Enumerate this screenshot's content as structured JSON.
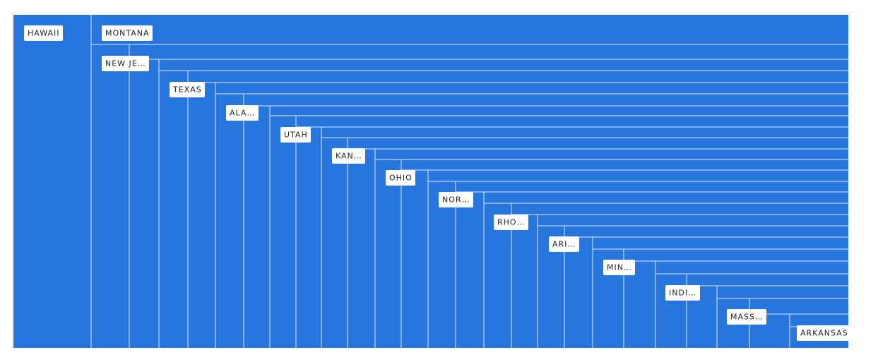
{
  "tiles": [
    {
      "label": "HAWAII"
    },
    {
      "label": "MONTANA"
    },
    {
      "label": "NEW JE…"
    },
    {
      "label": "TEXAS"
    },
    {
      "label": "ALA…"
    },
    {
      "label": "UTAH"
    },
    {
      "label": "KAN…"
    },
    {
      "label": "OHIO"
    },
    {
      "label": "NOR…"
    },
    {
      "label": "RHO…"
    },
    {
      "label": "ARI…"
    },
    {
      "label": "MIN…"
    },
    {
      "label": "INDI…"
    },
    {
      "label": "MASS…"
    },
    {
      "label": "ARKANSAS"
    }
  ]
}
